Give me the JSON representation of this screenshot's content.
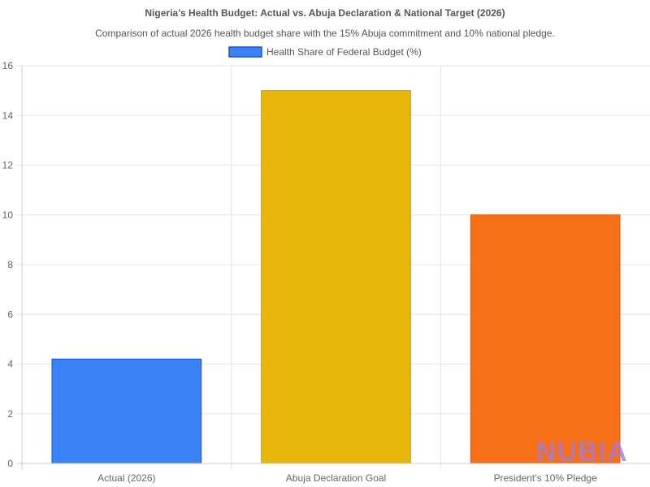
{
  "chart_data": {
    "type": "bar",
    "title": "Nigeria’s Health Budget: Actual vs. Abuja Declaration & National Target (2026)",
    "subtitle": "Comparison of actual 2026 health budget share with the 15% Abuja commitment and 10% national pledge.",
    "categories": [
      "Actual (2026)",
      "Abuja Declaration Goal",
      "President’s 10% Pledge"
    ],
    "series": [
      {
        "name": "Health Share of Federal Budget (%)",
        "values": [
          4.2,
          15,
          10
        ],
        "colors": [
          "#3b82f6",
          "#e8b50a",
          "#f77018"
        ],
        "border_colors": [
          "#1d4ed8",
          "#c99a06",
          "#e5620f"
        ]
      }
    ],
    "ylim": [
      0,
      16
    ],
    "y_ticks": [
      0,
      2,
      4,
      6,
      8,
      10,
      12,
      14,
      16
    ],
    "xlabel": "",
    "ylabel": "",
    "grid": true,
    "legend_position": "top-center"
  },
  "watermark": {
    "text": "NUBIA",
    "color": "#a57ad8"
  }
}
